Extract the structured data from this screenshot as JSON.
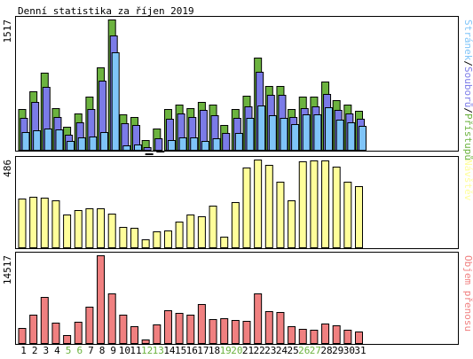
{
  "title": "Denní statistika za říjen 2019",
  "colors": {
    "background": "#ffffff",
    "border": "#000000",
    "hits": "#6cb33f",
    "files": "#7b7be8",
    "pages": "#7fc4f8",
    "visits": "#fffe9a",
    "volume": "#f08080",
    "weekday_label": "#000000",
    "weekend_label": "#6cb33f"
  },
  "chart_data": [
    {
      "type": "bar",
      "title": "Denní statistika za říjen 2019",
      "ylabel_max": "1517",
      "legend": [
        {
          "label": "Stránek",
          "color": "#7fc4f8"
        },
        {
          "label": "Souborů",
          "color": "#7b7be8"
        },
        {
          "label": "Přístupů",
          "color": "#6cb33f"
        }
      ],
      "legend_separator": "/",
      "legend_placement": "right",
      "ylim": [
        0,
        1517
      ],
      "categories": [
        "1",
        "2",
        "3",
        "4",
        "5",
        "6",
        "7",
        "8",
        "9",
        "10",
        "11",
        "12",
        "13",
        "14",
        "15",
        "16",
        "17",
        "18",
        "19",
        "20",
        "21",
        "22",
        "23",
        "24",
        "25",
        "26",
        "27",
        "28",
        "29",
        "30",
        "31"
      ],
      "series": [
        {
          "name": "Přístupů",
          "values": [
            470,
            680,
            900,
            480,
            270,
            420,
            620,
            960,
            1517,
            410,
            380,
            110,
            250,
            470,
            530,
            480,
            560,
            530,
            290,
            470,
            630,
            1070,
            740,
            740,
            470,
            620,
            620,
            790,
            580,
            530,
            450
          ]
        },
        {
          "name": "Souborů",
          "values": [
            420,
            610,
            780,
            430,
            230,
            370,
            530,
            860,
            1380,
            360,
            340,
            80,
            190,
            410,
            470,
            430,
            520,
            450,
            250,
            420,
            560,
            960,
            690,
            690,
            430,
            540,
            560,
            700,
            520,
            470,
            410
          ]
        },
        {
          "name": "Stránek",
          "values": [
            310,
            330,
            350,
            340,
            210,
            250,
            260,
            310,
            1240,
            150,
            170,
            60,
            90,
            220,
            250,
            250,
            210,
            240,
            100,
            300,
            470,
            620,
            510,
            470,
            400,
            520,
            520,
            600,
            450,
            420,
            380
          ]
        }
      ]
    },
    {
      "type": "bar",
      "ylabel_max": "486",
      "legend": [
        {
          "label": "Návštěv",
          "color": "#fffe9a"
        }
      ],
      "legend_placement": "right",
      "ylim": [
        0,
        486
      ],
      "categories": [
        "1",
        "2",
        "3",
        "4",
        "5",
        "6",
        "7",
        "8",
        "9",
        "10",
        "11",
        "12",
        "13",
        "14",
        "15",
        "16",
        "17",
        "18",
        "19",
        "20",
        "21",
        "22",
        "23",
        "24",
        "25",
        "26",
        "27",
        "28",
        "29",
        "30",
        "31"
      ],
      "series": [
        {
          "name": "Návštěv",
          "values": [
            268,
            280,
            276,
            261,
            182,
            205,
            218,
            215,
            187,
            112,
            109,
            43,
            86,
            91,
            143,
            181,
            170,
            229,
            57,
            252,
            443,
            486,
            455,
            363,
            258,
            474,
            480,
            481,
            446,
            365,
            341
          ]
        }
      ]
    },
    {
      "type": "bar",
      "ylabel_max": "14517",
      "legend": [
        {
          "label": "Objem přenosu",
          "color": "#f08080"
        }
      ],
      "legend_placement": "right",
      "ylim": [
        0,
        14517
      ],
      "categories": [
        "1",
        "2",
        "3",
        "4",
        "5",
        "6",
        "7",
        "8",
        "9",
        "10",
        "11",
        "12",
        "13",
        "14",
        "15",
        "16",
        "17",
        "18",
        "19",
        "20",
        "21",
        "22",
        "23",
        "24",
        "25",
        "26",
        "27",
        "28",
        "29",
        "30",
        "31"
      ],
      "series": [
        {
          "name": "Objem přenosu",
          "values": [
            2494,
            4699,
            7640,
            3301,
            1293,
            3457,
            6050,
            14517,
            8171,
            4623,
            2818,
            600,
            3081,
            5402,
            4913,
            4699,
            6495,
            3921,
            4133,
            3759,
            3705,
            8171,
            5346,
            5146,
            2764,
            2303,
            2257,
            3181,
            2985,
            2257,
            1891
          ]
        }
      ]
    }
  ]
}
